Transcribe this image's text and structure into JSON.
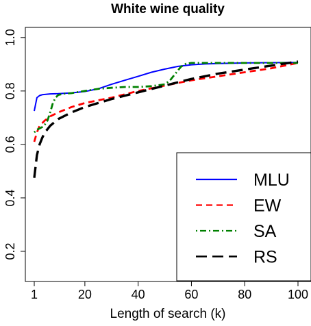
{
  "chart_data": {
    "type": "line",
    "title": "White wine quality",
    "xlabel": "Length of search (k)",
    "ylabel": "",
    "xlim": [
      1,
      100
    ],
    "ylim": [
      0.1,
      1.02
    ],
    "x_ticks": [
      1,
      20,
      40,
      60,
      80,
      100
    ],
    "y_ticks": [
      0.2,
      0.4,
      0.6,
      0.8,
      1.0
    ],
    "x_tick_labels": [
      "1",
      "20",
      "40",
      "60",
      "80",
      "100"
    ],
    "y_tick_labels": [
      "0.2",
      "0.4",
      "0.6",
      "0.8",
      "1.0"
    ],
    "grid": false,
    "legend_position": "bottom-right",
    "series": [
      {
        "name": "MLU",
        "color": "#0000ff",
        "dash": "solid",
        "x": [
          1,
          2,
          3,
          4,
          5,
          7,
          10,
          15,
          20,
          25,
          30,
          35,
          40,
          45,
          50,
          55,
          60,
          65,
          70,
          80,
          90,
          100
        ],
        "y": [
          0.725,
          0.775,
          0.783,
          0.786,
          0.787,
          0.789,
          0.79,
          0.793,
          0.798,
          0.808,
          0.825,
          0.84,
          0.855,
          0.87,
          0.882,
          0.892,
          0.898,
          0.901,
          0.903,
          0.905,
          0.906,
          0.907
        ]
      },
      {
        "name": "EW",
        "color": "#ff0000",
        "dash": "dashed",
        "x": [
          1,
          2,
          3,
          5,
          7,
          10,
          15,
          20,
          30,
          40,
          50,
          60,
          70,
          80,
          90,
          100
        ],
        "y": [
          0.61,
          0.645,
          0.67,
          0.69,
          0.705,
          0.72,
          0.74,
          0.755,
          0.775,
          0.8,
          0.82,
          0.84,
          0.855,
          0.87,
          0.885,
          0.905
        ]
      },
      {
        "name": "SA",
        "color": "#008000",
        "dash": "dashdot",
        "x": [
          1,
          2,
          3,
          4,
          5,
          6,
          7,
          8,
          9,
          10,
          12,
          15,
          20,
          25,
          30,
          35,
          40,
          45,
          50,
          52,
          54,
          56,
          58,
          60,
          70,
          80,
          90,
          100
        ],
        "y": [
          0.645,
          0.655,
          0.66,
          0.665,
          0.675,
          0.69,
          0.72,
          0.755,
          0.775,
          0.785,
          0.79,
          0.792,
          0.8,
          0.808,
          0.812,
          0.815,
          0.815,
          0.818,
          0.825,
          0.84,
          0.865,
          0.89,
          0.902,
          0.905,
          0.905,
          0.905,
          0.905,
          0.905
        ]
      },
      {
        "name": "RS",
        "color": "#000000",
        "dash": "longdash",
        "x": [
          1,
          2,
          3,
          4,
          5,
          7,
          10,
          15,
          20,
          30,
          40,
          50,
          60,
          70,
          80,
          90,
          100
        ],
        "y": [
          0.475,
          0.56,
          0.6,
          0.625,
          0.645,
          0.67,
          0.695,
          0.72,
          0.74,
          0.77,
          0.795,
          0.82,
          0.845,
          0.865,
          0.88,
          0.895,
          0.91
        ]
      }
    ]
  }
}
